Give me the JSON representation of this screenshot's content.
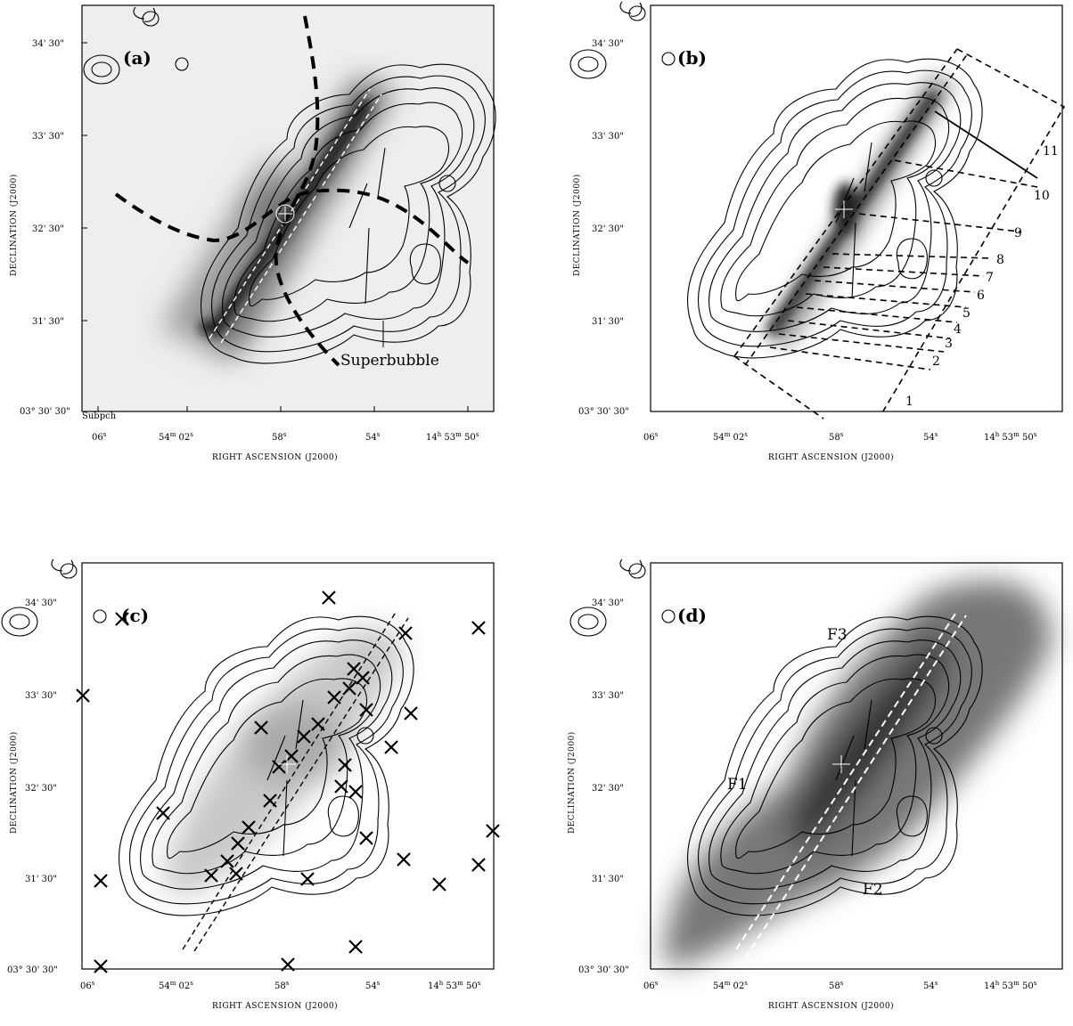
{
  "figure": {
    "xlabel": "RIGHT ASCENSION (J2000)",
    "ylabel": "DECLINATION (J2000)",
    "x_ticks": [
      {
        "main": "06",
        "sec": "s"
      },
      {
        "main": "54",
        "min": "m",
        "main2": "02",
        "sec": "s"
      },
      {
        "main": "58",
        "sec": "s"
      },
      {
        "main": "54",
        "sec": "s"
      },
      {
        "main": "14",
        "hr": "h",
        "main2": "53",
        "min": "m",
        "main3": "50",
        "sec": "s"
      }
    ],
    "y_ticks": [
      "34' 30\"",
      "33' 30\"",
      "32' 30\"",
      "31' 30\"",
      "03° 30' 30\""
    ]
  },
  "panels": {
    "a": {
      "label": "(a)",
      "annotation": "Superbubble",
      "corner_text": "Subpch"
    },
    "b": {
      "label": "(b)",
      "strip_numbers": [
        "1",
        "2",
        "3",
        "4",
        "5",
        "6",
        "7",
        "8",
        "9",
        "10",
        "11"
      ]
    },
    "c": {
      "label": "(c)"
    },
    "d": {
      "label": "(d)",
      "filaments": [
        "F1",
        "F2",
        "F3"
      ]
    }
  }
}
